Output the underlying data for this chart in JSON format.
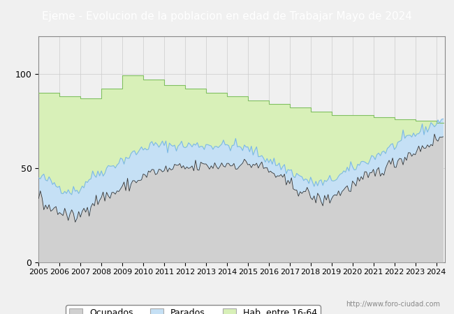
{
  "title": "Ejeme - Evolucion de la poblacion en edad de Trabajar Mayo de 2024",
  "title_bgcolor": "#4472C4",
  "title_color": "white",
  "title_fontsize": 11,
  "ylim": [
    0,
    120
  ],
  "yticks": [
    0,
    50,
    100
  ],
  "color_ocupados_fill": "#d0d0d0",
  "color_ocupados_line": "#333333",
  "color_parados_fill": "#c5e0f5",
  "color_parados_line": "#7ab8e8",
  "color_hab_fill": "#d8f0b8",
  "color_hab_line": "#80c060",
  "legend_labels": [
    "Ocupados",
    "Parados",
    "Hab. entre 16-64"
  ],
  "watermark": "http://www.foro-ciudad.com",
  "background_color": "#f0f0f0",
  "plot_bgcolor": "#f0f0f0",
  "hab_annual": [
    90,
    88,
    87,
    92,
    99,
    97,
    94,
    92,
    90,
    88,
    86,
    84,
    82,
    80,
    78,
    78,
    77,
    76,
    75,
    74
  ],
  "years": [
    2005,
    2006,
    2007,
    2008,
    2009,
    2010,
    2011,
    2012,
    2013,
    2014,
    2015,
    2016,
    2017,
    2018,
    2019,
    2020,
    2021,
    2022,
    2023,
    2024
  ],
  "parados_monthly_base": [
    44,
    45,
    44,
    43,
    42,
    41,
    40,
    39,
    38,
    38,
    38,
    38,
    39,
    41,
    43,
    45,
    46,
    47,
    48,
    49,
    50,
    51,
    52,
    53,
    54,
    55,
    56,
    57,
    58,
    59,
    60,
    61,
    62,
    62,
    62,
    62,
    62,
    62,
    62,
    62,
    62,
    62,
    62,
    62,
    62,
    62,
    62,
    62,
    62,
    62,
    62,
    62,
    62,
    62,
    62,
    62,
    62,
    62,
    61,
    61,
    60,
    60,
    59,
    58,
    57,
    56,
    55,
    54,
    53,
    52,
    51,
    50,
    49,
    48,
    47,
    46,
    45,
    44,
    43,
    42,
    42,
    42,
    42,
    42,
    43,
    44,
    45,
    46,
    47,
    48,
    49,
    50,
    51,
    52,
    53,
    54,
    55,
    56,
    57,
    58,
    59,
    60,
    61,
    62,
    63,
    64,
    65,
    66,
    67,
    68,
    69,
    70,
    71,
    72,
    73,
    74,
    75,
    76
  ],
  "ocupados_monthly_base": [
    35,
    33,
    30,
    29,
    28,
    28,
    27,
    26,
    25,
    24,
    24,
    24,
    25,
    27,
    29,
    31,
    32,
    33,
    34,
    35,
    35,
    36,
    37,
    38,
    39,
    40,
    41,
    42,
    43,
    44,
    45,
    46,
    47,
    48,
    48,
    48,
    48,
    49,
    49,
    50,
    50,
    50,
    50,
    50,
    50,
    50,
    51,
    51,
    51,
    51,
    51,
    51,
    51,
    52,
    52,
    52,
    52,
    52,
    52,
    52,
    52,
    52,
    52,
    52,
    51,
    50,
    49,
    48,
    47,
    46,
    44,
    43,
    42,
    41,
    40,
    39,
    38,
    37,
    36,
    35,
    34,
    33,
    33,
    33,
    34,
    35,
    36,
    37,
    38,
    39,
    40,
    41,
    42,
    43,
    44,
    45,
    46,
    47,
    48,
    49,
    50,
    51,
    52,
    53,
    54,
    55,
    56,
    57,
    58,
    59,
    60,
    61,
    62,
    63,
    64,
    65,
    66,
    67
  ]
}
